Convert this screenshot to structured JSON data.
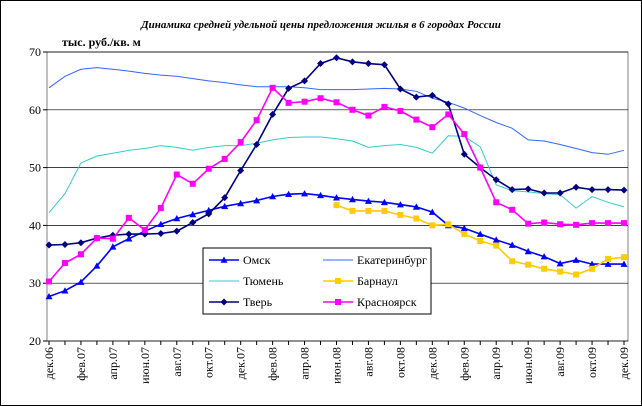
{
  "chart_data": {
    "type": "line",
    "title": "Динамика средней удельной цены предложения жилья в 6 городах России",
    "y_label": "тыс. руб./кв. м",
    "categories": [
      "дек.06",
      null,
      "фев.07",
      null,
      "апр.07",
      null,
      "июн.07",
      null,
      "авг.07",
      null,
      "окт.07",
      null,
      "дек.07",
      null,
      "фев.08",
      null,
      "апр.08",
      null,
      "июн.08",
      null,
      "авг.08",
      null,
      "окт.08",
      null,
      "дек.08",
      null,
      "фев.09",
      null,
      "апр.09",
      null,
      "июн.09",
      null,
      "авг.09",
      null,
      "окт.09",
      null,
      "дек.09"
    ],
    "ylim": [
      20,
      70
    ],
    "yticks": [
      20,
      30,
      40,
      50,
      60,
      70
    ],
    "grid": true,
    "legend": "bottom-center",
    "series": [
      {
        "name": "Омск",
        "color": "#0000ff",
        "marker": "triangle",
        "values": [
          27.7,
          28.7,
          30.2,
          33,
          36.3,
          37.7,
          39,
          40.2,
          41.2,
          41.9,
          42.6,
          43.3,
          43.8,
          44.3,
          45,
          45.4,
          45.5,
          45.2,
          44.8,
          44.5,
          44.2,
          44,
          43.6,
          43.2,
          42.3,
          40,
          39.5,
          38.5,
          37.5,
          36.6,
          35.5,
          34.6,
          33.4,
          34,
          33.3,
          33.3,
          33.3
        ]
      },
      {
        "name": "Екатеринбург",
        "color": "#3366ff",
        "marker": "none",
        "values": [
          63.8,
          65.8,
          67,
          67.3,
          67,
          66.7,
          66.3,
          66,
          65.8,
          65.4,
          65,
          64.7,
          64.3,
          64,
          64,
          64,
          63.8,
          63.5,
          63.5,
          63.5,
          63.6,
          63.7,
          63.6,
          63.2,
          62,
          61.3,
          60.3,
          59,
          57.8,
          56.8,
          54.8,
          54.6,
          54,
          53.3,
          52.6,
          52.3,
          53
        ]
      },
      {
        "name": "Тюмень",
        "color": "#33cccc",
        "marker": "none",
        "values": [
          42.2,
          45.5,
          50.8,
          52,
          52.5,
          53,
          53.3,
          53.8,
          53.5,
          53,
          53.5,
          53.8,
          53.8,
          54.2,
          54.8,
          55.2,
          55.3,
          55.3,
          55,
          54.6,
          53.5,
          53.8,
          54,
          53.5,
          52.5,
          55.5,
          55.4,
          53.6,
          47,
          46,
          45.8,
          45.5,
          45.3,
          43,
          45,
          44,
          43.2
        ]
      },
      {
        "name": "Барнаул",
        "color": "#ffcc00",
        "marker": "square",
        "values": [
          null,
          null,
          null,
          null,
          null,
          null,
          null,
          null,
          null,
          null,
          null,
          null,
          null,
          null,
          null,
          null,
          null,
          null,
          43.5,
          42.5,
          42.5,
          42.5,
          41.8,
          41.2,
          40,
          40.2,
          38.5,
          37.3,
          36.5,
          33.8,
          33.2,
          32.5,
          32,
          31.5,
          32.5,
          34.2,
          34.5
        ]
      },
      {
        "name": "Тверь",
        "color": "#000080",
        "marker": "diamond",
        "values": [
          36.6,
          36.7,
          37,
          37.8,
          38.3,
          38.5,
          38.5,
          38.6,
          39,
          40.5,
          42,
          44.8,
          49.5,
          54,
          59.2,
          63.7,
          65,
          68,
          69,
          68.3,
          68,
          67.8,
          63.6,
          62.2,
          62.5,
          61,
          52.3,
          50,
          47.9,
          46.2,
          46.3,
          45.6,
          45.6,
          46.6,
          46.2,
          46.2,
          46.1
        ]
      },
      {
        "name": "Красноярск",
        "color": "#ff00ff",
        "marker": "square",
        "values": [
          30.3,
          33.5,
          35,
          37.8,
          37.7,
          41.3,
          39.2,
          43,
          48.8,
          47.2,
          49.8,
          51.5,
          54.4,
          58.2,
          63.8,
          61.2,
          61.4,
          62,
          61.3,
          60,
          59,
          60.5,
          59.8,
          58.3,
          57,
          59.2,
          55.8,
          50,
          44,
          42.7,
          40.3,
          40.5,
          40.2,
          40.1,
          40.4,
          40.4,
          40.4
        ]
      }
    ]
  }
}
